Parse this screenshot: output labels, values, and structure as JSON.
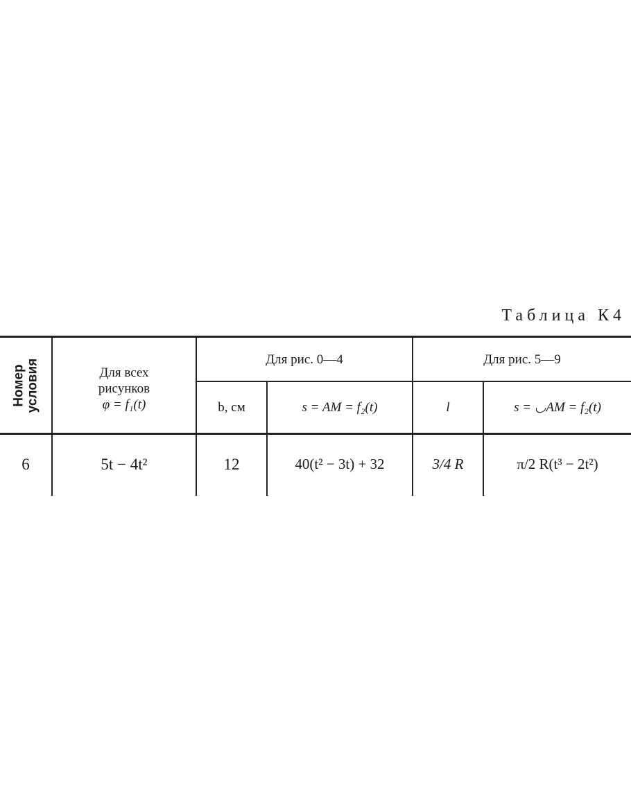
{
  "title": "Таблица К4",
  "headers": {
    "col_number": [
      "Номер",
      "условия"
    ],
    "col_all": [
      "Для всех",
      "рисунков",
      "φ = f₁(t)"
    ],
    "group_0_4": "Для рис. 0—4",
    "group_5_9": "Для рис. 5—9",
    "b": "b, см",
    "s_AM_0_4": "s = AM = f₂(t)",
    "l": "l",
    "s_AM_5_9": "s = ◡AM = f₂(t)"
  },
  "rows": [
    {
      "number": "6",
      "phi": "5t − 4t²",
      "b": "12",
      "s_0_4": "40(t² − 3t) + 32",
      "l": "3/4 R",
      "s_5_9": "π/2 R(t³ − 2t²)"
    }
  ]
}
